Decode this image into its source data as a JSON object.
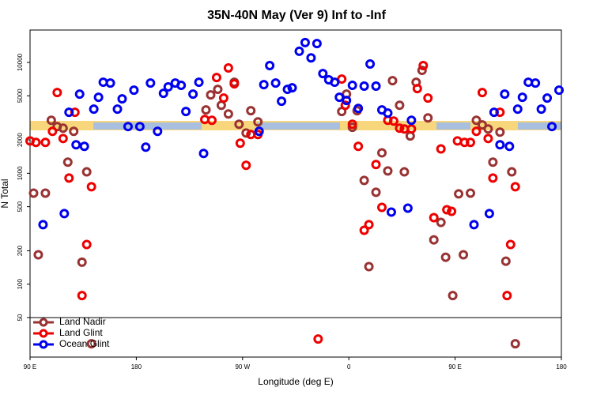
{
  "chart_data": {
    "type": "scatter",
    "title": "35N-40N May (Ver 9)   Inf to -Inf",
    "xlabel": "Longitude (deg E)",
    "ylabel": "N Total",
    "xlim": [
      90,
      540
    ],
    "xticks": [
      {
        "value": 90,
        "label": "90 E"
      },
      180,
      {
        "value": 270,
        "label": "90 W"
      },
      {
        "value": 360,
        "label": "0"
      },
      {
        "value": 450,
        "label": "90 E"
      },
      {
        "value": 540,
        "label": "180"
      }
    ],
    "ylim": [
      22,
      19600
    ],
    "log_y": true,
    "yticks": [
      50,
      100,
      200,
      500,
      1000,
      2000,
      5000,
      10000
    ],
    "separator": 50,
    "legend": "bottom-left",
    "series": [
      {
        "name": "Land Nadir",
        "color": "#993333",
        "x": [
          93,
          97,
          103,
          108,
          113,
          118,
          122,
          127,
          134,
          138,
          142,
          239,
          243,
          249,
          252,
          258,
          263,
          267,
          273,
          277,
          283,
          354,
          358,
          363,
          367,
          373,
          377,
          383,
          388,
          393,
          397,
          403,
          407,
          412,
          417,
          422,
          427,
          432,
          438,
          442,
          448,
          453,
          457,
          463,
          468,
          473,
          478,
          482,
          488,
          493,
          498,
          501
        ],
        "values": [
          662,
          184,
          662,
          3010,
          2640,
          2550,
          1260,
          2390,
          158,
          1030,
          29,
          3730,
          5090,
          5720,
          4110,
          3430,
          6630,
          2770,
          2310,
          3670,
          2910,
          3610,
          5180,
          2600,
          3670,
          863,
          144,
          675,
          1530,
          1050,
          6850,
          4110,
          1030,
          2170,
          6630,
          8480,
          3160,
          251,
          361,
          175,
          79,
          652,
          184,
          662,
          3010,
          2730,
          2510,
          1260,
          2350,
          161,
          1030,
          29
        ]
      },
      {
        "name": "Land Glint",
        "color": "#ee0000",
        "x": [
          90,
          95,
          103,
          109,
          113,
          118,
          123,
          128,
          134,
          138,
          142,
          238,
          244,
          248,
          254,
          258,
          263,
          268,
          273,
          277,
          283,
          334,
          354,
          357,
          363,
          368,
          373,
          377,
          383,
          388,
          393,
          398,
          403,
          407,
          413,
          418,
          423,
          427,
          432,
          438,
          443,
          447,
          452,
          458,
          463,
          468,
          473,
          478,
          482,
          488,
          494,
          497,
          501
        ],
        "values": [
          1960,
          1900,
          1900,
          2390,
          5350,
          2060,
          906,
          3550,
          79,
          228,
          757,
          3060,
          3010,
          7310,
          4770,
          8910,
          6410,
          1870,
          1180,
          2240,
          2240,
          32,
          7080,
          4110,
          2770,
          1750,
          306,
          344,
          1200,
          493,
          3010,
          2960,
          2550,
          2510,
          2510,
          5810,
          9360,
          4770,
          398,
          1660,
          469,
          454,
          1960,
          1900,
          1900,
          2390,
          5350,
          2060,
          906,
          3550,
          79,
          228,
          757
        ]
      },
      {
        "name": "Ocean Glint",
        "color": "#0000ee",
        "x": [
          101,
          119,
          123,
          129,
          132,
          136,
          144,
          148,
          152,
          158,
          164,
          168,
          173,
          178,
          183,
          188,
          192,
          198,
          203,
          207,
          213,
          218,
          222,
          228,
          233,
          237,
          284,
          288,
          293,
          298,
          303,
          308,
          312,
          318,
          323,
          328,
          333,
          338,
          343,
          348,
          352,
          358,
          363,
          368,
          373,
          378,
          383,
          388,
          393,
          396,
          410,
          413,
          466,
          479,
          483,
          488,
          492,
          496,
          503,
          507,
          512,
          518,
          523,
          528,
          532,
          538
        ],
        "values": [
          344,
          433,
          3550,
          1810,
          5180,
          1750,
          3790,
          4850,
          6630,
          6520,
          3790,
          4690,
          2640,
          5620,
          2640,
          1720,
          6520,
          2390,
          5260,
          6010,
          6520,
          6210,
          3610,
          5180,
          6630,
          1510,
          2390,
          6310,
          9360,
          6520,
          4470,
          5720,
          5910,
          12600,
          15100,
          11000,
          14800,
          7940,
          6970,
          6630,
          4850,
          4540,
          6210,
          3850,
          6110,
          9680,
          6110,
          3730,
          3490,
          447,
          485,
          3010,
          344,
          433,
          3550,
          1810,
          5180,
          1750,
          3790,
          4850,
          6630,
          6520,
          3790,
          4770,
          2640,
          5620
        ]
      }
    ]
  }
}
